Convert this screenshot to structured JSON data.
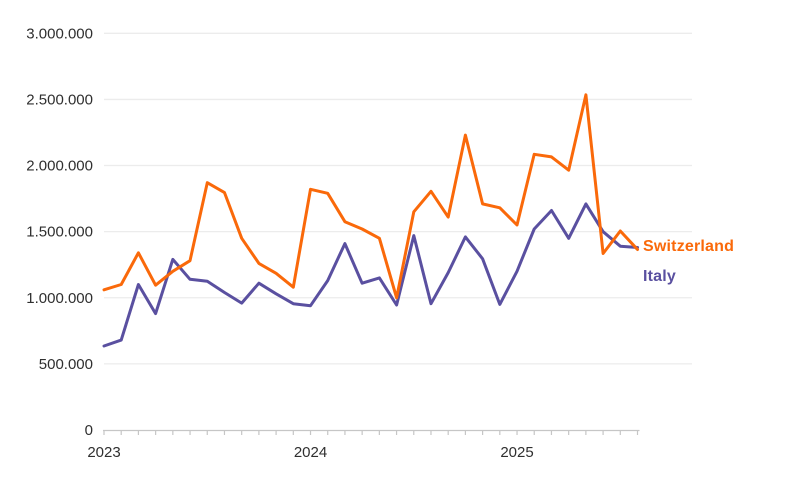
{
  "chart_data": {
    "type": "line",
    "title": "",
    "x": [
      "2023-01",
      "2023-02",
      "2023-03",
      "2023-04",
      "2023-05",
      "2023-06",
      "2023-07",
      "2023-08",
      "2023-09",
      "2023-10",
      "2023-11",
      "2023-12",
      "2024-01",
      "2024-02",
      "2024-03",
      "2024-04",
      "2024-05",
      "2024-06",
      "2024-07",
      "2024-08",
      "2024-09",
      "2024-10",
      "2024-11",
      "2024-12",
      "2025-01",
      "2025-02",
      "2025-03",
      "2025-04",
      "2025-05",
      "2025-06",
      "2025-07",
      "2025-08"
    ],
    "x_tick_labels": [
      "2023",
      "2024",
      "2025"
    ],
    "y_tick_labels": [
      "0",
      "500.000",
      "1.000.000",
      "1.500.000",
      "2.000.000",
      "2.500.000",
      "3.000.000"
    ],
    "ylim": [
      0,
      3000000
    ],
    "grid": "horizontal",
    "legend_position": "right-of-line-end",
    "series": [
      {
        "name": "Switzerland",
        "color": "#FA690A",
        "values": [
          1060000,
          1100000,
          1340000,
          1095000,
          1200000,
          1280000,
          1870000,
          1795000,
          1450000,
          1260000,
          1185000,
          1080000,
          1820000,
          1790000,
          1575000,
          1520000,
          1450000,
          1000000,
          1650000,
          1805000,
          1610000,
          2230000,
          1710000,
          1680000,
          1550000,
          2085000,
          2065000,
          1965000,
          2535000,
          1335000,
          1505000,
          1365000
        ]
      },
      {
        "name": "Italy",
        "color": "#5A50A0",
        "values": [
          635000,
          680000,
          1100000,
          880000,
          1290000,
          1140000,
          1125000,
          1040000,
          960000,
          1110000,
          1030000,
          955000,
          940000,
          1130000,
          1410000,
          1110000,
          1150000,
          945000,
          1470000,
          955000,
          1190000,
          1460000,
          1295000,
          950000,
          1200000,
          1520000,
          1660000,
          1450000,
          1710000,
          1500000,
          1390000,
          1380000
        ]
      }
    ],
    "style": {
      "grid_color": "#ececec",
      "axis_color": "#c6c6c6",
      "text_color": "#2f2f2f",
      "line_width": 3
    }
  }
}
